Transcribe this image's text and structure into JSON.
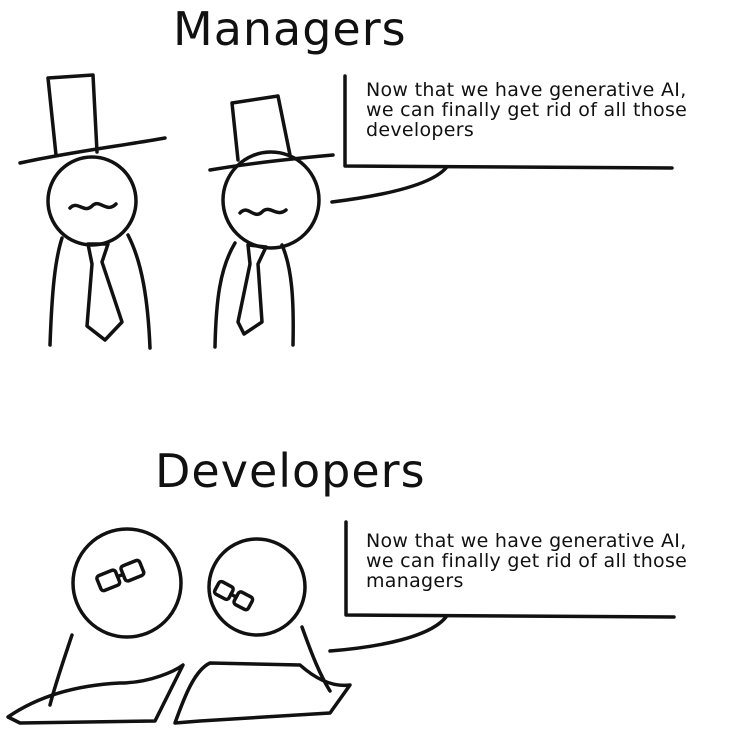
{
  "panels": [
    {
      "title": "Managers",
      "speech": "Now that we have generative AI,\nwe can finally get rid of all those\ndevelopers"
    },
    {
      "title": "Developers",
      "speech": "Now that we have generative AI,\nwe can finally get rid of all those\nmanagers"
    }
  ],
  "icons": [
    "top-hat-icon",
    "mustache-icon",
    "necktie-icon",
    "glasses-icon",
    "laptop-icon"
  ]
}
